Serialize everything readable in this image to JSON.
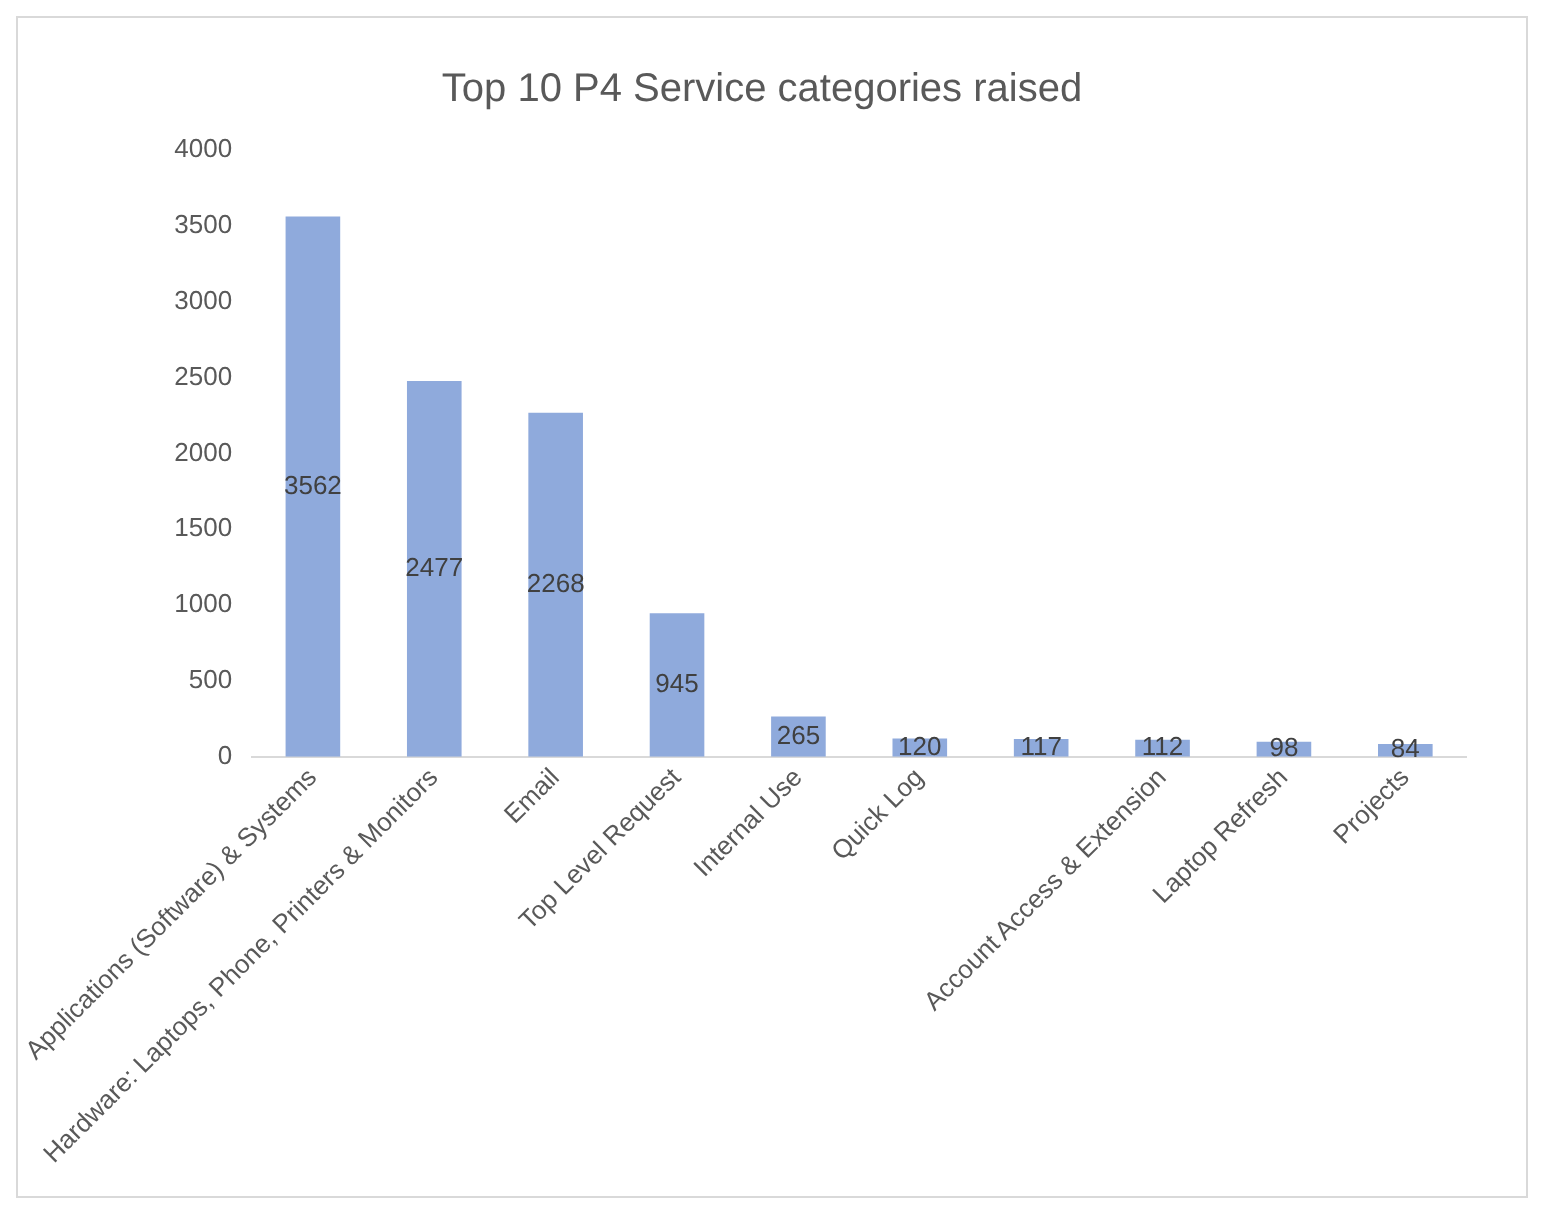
{
  "chart_data": {
    "type": "bar",
    "title": "Top 10 P4 Service categories raised",
    "categories": [
      "Applications (Software) & Systems",
      "Hardware: Laptops, Phone, Printers & Monitors",
      "Email",
      "Top Level Request",
      "Internal Use",
      "Quick Log",
      null,
      "Account Access & Extension",
      "Laptop Refresh",
      "Projects"
    ],
    "values": [
      3562,
      2477,
      2268,
      945,
      265,
      120,
      117,
      112,
      98,
      84
    ],
    "color": "#8faadc",
    "ylim": [
      0,
      4000
    ],
    "yticks": [
      0,
      500,
      1000,
      1500,
      2000,
      2500,
      3000,
      3500,
      4000
    ],
    "grid": false,
    "legend": false,
    "data_labels": true
  }
}
